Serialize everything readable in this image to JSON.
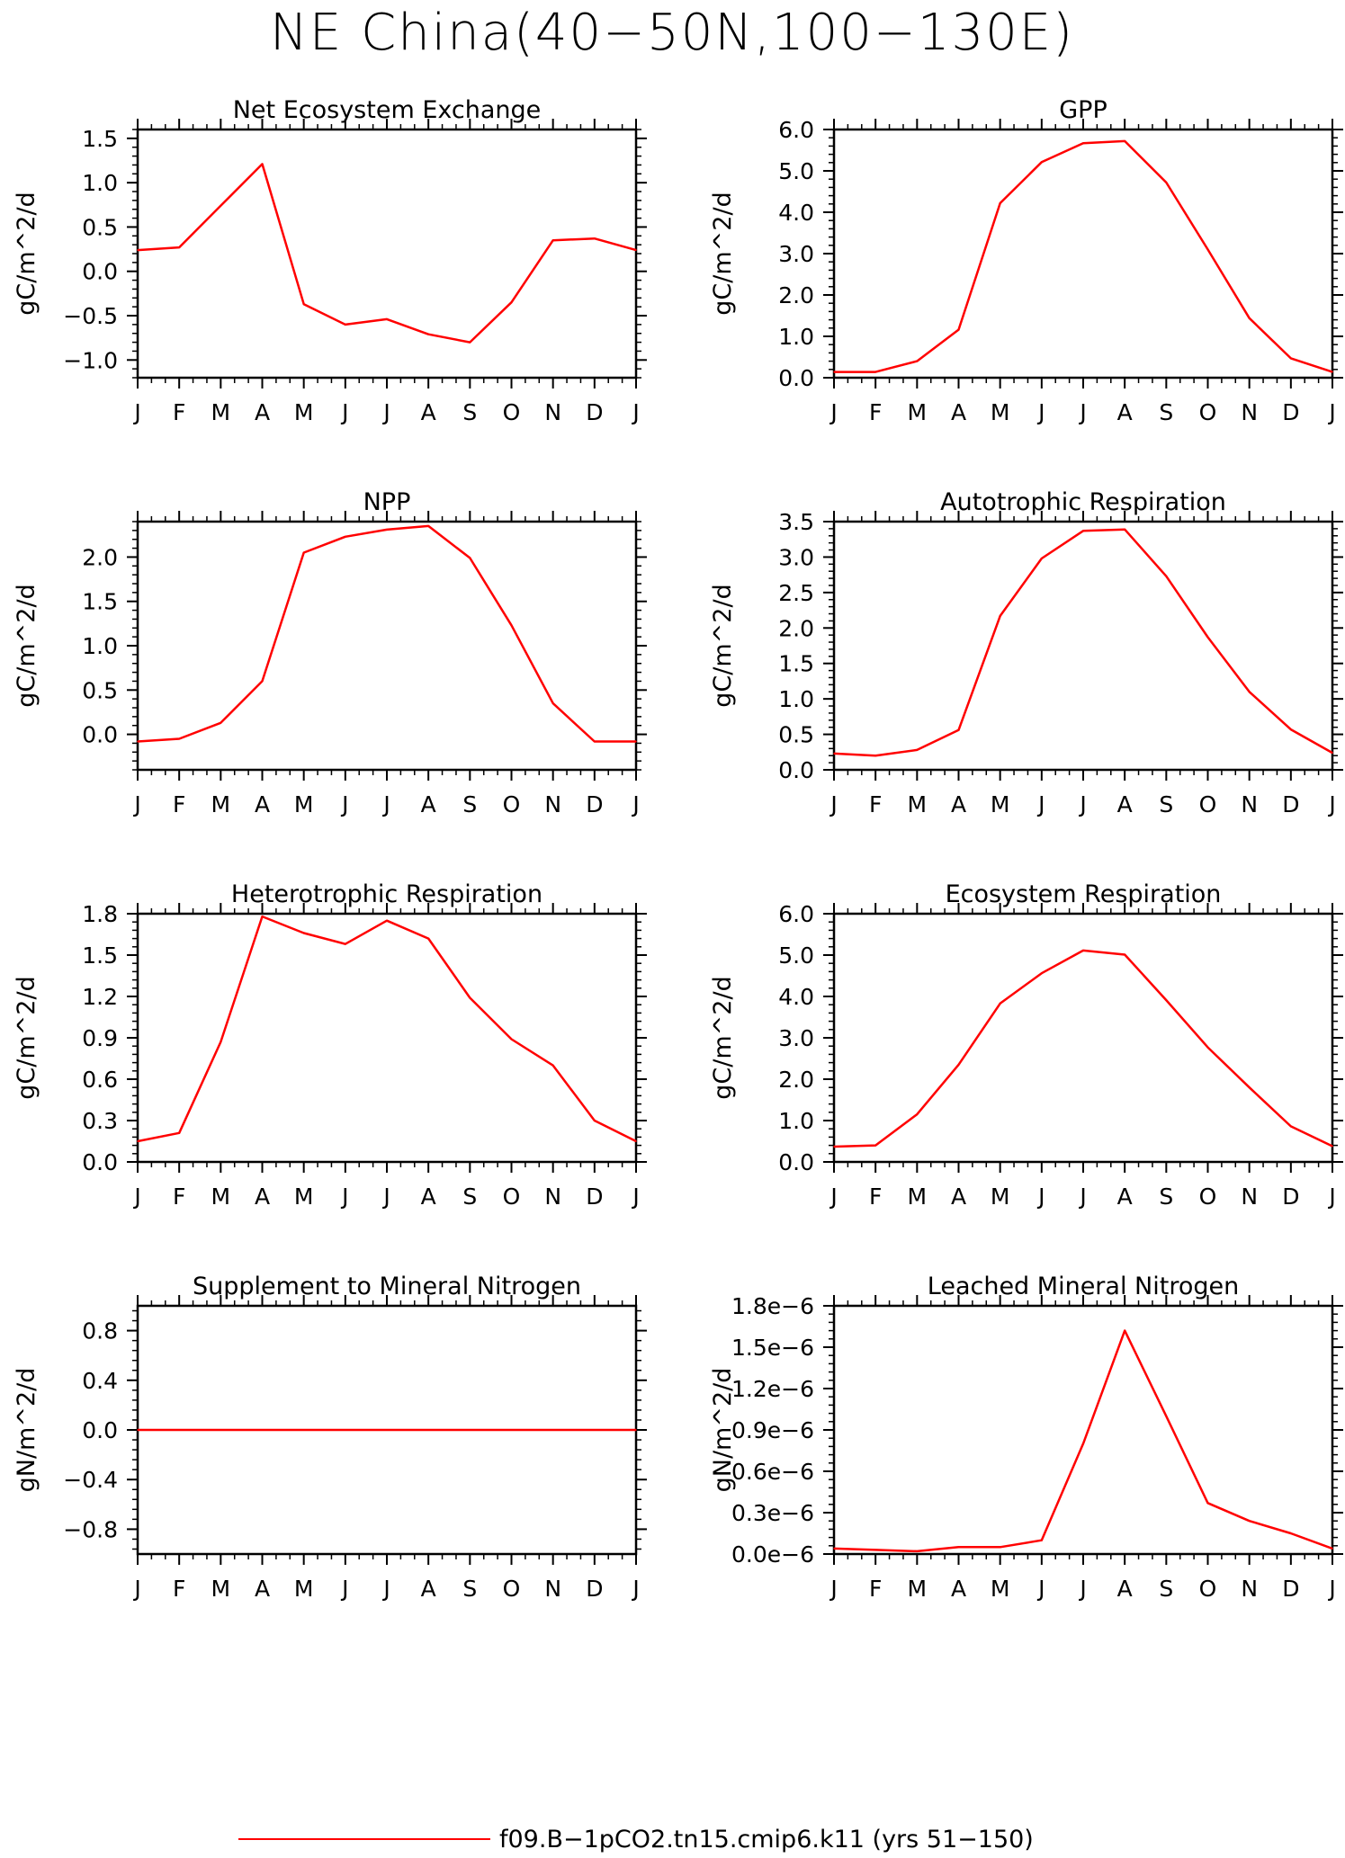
{
  "title": "NE China(40−50N,100−130E)",
  "legend": {
    "label": "f09.B−1pCO2.tn15.cmip6.k11 (yrs 51−150)",
    "color": "#ff0000"
  },
  "line_color": "#ff0000",
  "chart_data": [
    {
      "type": "line",
      "title": "Net Ecosystem Exchange",
      "ylabel": "gC/m^2/d",
      "categories": [
        "J",
        "F",
        "M",
        "A",
        "M",
        "J",
        "J",
        "A",
        "S",
        "O",
        "N",
        "D",
        "J"
      ],
      "ylim": [
        -1.2,
        1.6
      ],
      "yticks": [
        -1.0,
        -0.5,
        0.0,
        0.5,
        1.0,
        1.5
      ],
      "ytick_labels": [
        "−1.0",
        "−0.5",
        "0.0",
        "0.5",
        "1.0",
        "1.5"
      ],
      "series": [
        {
          "values": [
            0.24,
            0.27,
            0.74,
            1.21,
            -0.37,
            -0.6,
            -0.54,
            -0.71,
            -0.8,
            -0.35,
            0.35,
            0.37,
            0.24
          ]
        }
      ]
    },
    {
      "type": "line",
      "title": "GPP",
      "ylabel": "gC/m^2/d",
      "categories": [
        "J",
        "F",
        "M",
        "A",
        "M",
        "J",
        "J",
        "A",
        "S",
        "O",
        "N",
        "D",
        "J"
      ],
      "ylim": [
        0.0,
        6.0
      ],
      "yticks": [
        0.0,
        1.0,
        2.0,
        3.0,
        4.0,
        5.0,
        6.0
      ],
      "ytick_labels": [
        "0.0",
        "1.0",
        "2.0",
        "3.0",
        "4.0",
        "5.0",
        "6.0"
      ],
      "series": [
        {
          "values": [
            0.14,
            0.14,
            0.4,
            1.16,
            4.22,
            5.21,
            5.67,
            5.72,
            4.72,
            3.1,
            1.44,
            0.47,
            0.14
          ]
        }
      ]
    },
    {
      "type": "line",
      "title": "NPP",
      "ylabel": "gC/m^2/d",
      "categories": [
        "J",
        "F",
        "M",
        "A",
        "M",
        "J",
        "J",
        "A",
        "S",
        "O",
        "N",
        "D",
        "J"
      ],
      "ylim": [
        -0.4,
        2.4
      ],
      "yticks": [
        0.0,
        0.5,
        1.0,
        1.5,
        2.0
      ],
      "ytick_labels": [
        "0.0",
        "0.5",
        "1.0",
        "1.5",
        "2.0"
      ],
      "series": [
        {
          "values": [
            -0.08,
            -0.05,
            0.13,
            0.6,
            2.05,
            2.23,
            2.31,
            2.35,
            1.99,
            1.23,
            0.35,
            -0.08,
            -0.08
          ]
        }
      ]
    },
    {
      "type": "line",
      "title": "Autotrophic Respiration",
      "ylabel": "gC/m^2/d",
      "categories": [
        "J",
        "F",
        "M",
        "A",
        "M",
        "J",
        "J",
        "A",
        "S",
        "O",
        "N",
        "D",
        "J"
      ],
      "ylim": [
        0.0,
        3.5
      ],
      "yticks": [
        0.0,
        0.5,
        1.0,
        1.5,
        2.0,
        2.5,
        3.0,
        3.5
      ],
      "ytick_labels": [
        "0.0",
        "0.5",
        "1.0",
        "1.5",
        "2.0",
        "2.5",
        "3.0",
        "3.5"
      ],
      "series": [
        {
          "values": [
            0.23,
            0.2,
            0.28,
            0.56,
            2.17,
            2.98,
            3.37,
            3.39,
            2.73,
            1.87,
            1.1,
            0.57,
            0.24
          ]
        }
      ]
    },
    {
      "type": "line",
      "title": "Heterotrophic Respiration",
      "ylabel": "gC/m^2/d",
      "categories": [
        "J",
        "F",
        "M",
        "A",
        "M",
        "J",
        "J",
        "A",
        "S",
        "O",
        "N",
        "D",
        "J"
      ],
      "ylim": [
        0.0,
        1.8
      ],
      "yticks": [
        0.0,
        0.3,
        0.6,
        0.9,
        1.2,
        1.5,
        1.8
      ],
      "ytick_labels": [
        "0.0",
        "0.3",
        "0.6",
        "0.9",
        "1.2",
        "1.5",
        "1.8"
      ],
      "series": [
        {
          "values": [
            0.15,
            0.21,
            0.87,
            1.78,
            1.66,
            1.58,
            1.75,
            1.62,
            1.19,
            0.89,
            0.7,
            0.3,
            0.15
          ]
        }
      ]
    },
    {
      "type": "line",
      "title": "Ecosystem Respiration",
      "ylabel": "gC/m^2/d",
      "categories": [
        "J",
        "F",
        "M",
        "A",
        "M",
        "J",
        "J",
        "A",
        "S",
        "O",
        "N",
        "D",
        "J"
      ],
      "ylim": [
        0.0,
        6.0
      ],
      "yticks": [
        0.0,
        1.0,
        2.0,
        3.0,
        4.0,
        5.0,
        6.0
      ],
      "ytick_labels": [
        "0.0",
        "1.0",
        "2.0",
        "3.0",
        "4.0",
        "5.0",
        "6.0"
      ],
      "series": [
        {
          "values": [
            0.37,
            0.4,
            1.15,
            2.35,
            3.83,
            4.56,
            5.11,
            5.01,
            3.91,
            2.77,
            1.8,
            0.86,
            0.38
          ]
        }
      ]
    },
    {
      "type": "line",
      "title": "Supplement to Mineral Nitrogen",
      "ylabel": "gN/m^2/d",
      "categories": [
        "J",
        "F",
        "M",
        "A",
        "M",
        "J",
        "J",
        "A",
        "S",
        "O",
        "N",
        "D",
        "J"
      ],
      "ylim": [
        -1.0,
        1.0
      ],
      "yticks": [
        -0.8,
        -0.4,
        0.0,
        0.4,
        0.8
      ],
      "ytick_labels": [
        "−0.8",
        "−0.4",
        "0.0",
        "0.4",
        "0.8"
      ],
      "series": [
        {
          "values": [
            0,
            0,
            0,
            0,
            0,
            0,
            0,
            0,
            0,
            0,
            0,
            0,
            0
          ]
        }
      ]
    },
    {
      "type": "line",
      "title": "Leached Mineral Nitrogen",
      "ylabel": "gN/m^2/d",
      "categories": [
        "J",
        "F",
        "M",
        "A",
        "M",
        "J",
        "J",
        "A",
        "S",
        "O",
        "N",
        "D",
        "J"
      ],
      "ylim": [
        0.0,
        1.8e-06
      ],
      "yticks": [
        0.0,
        3e-07,
        6e-07,
        9e-07,
        1.2e-06,
        1.5e-06,
        1.8e-06
      ],
      "ytick_labels": [
        "0.0e−6",
        "0.3e−6",
        "0.6e−6",
        "0.9e−6",
        "1.2e−6",
        "1.5e−6",
        "1.8e−6"
      ],
      "series": [
        {
          "values": [
            4e-08,
            3e-08,
            2e-08,
            5e-08,
            5e-08,
            1e-07,
            8e-07,
            1.62e-06,
            1e-06,
            3.7e-07,
            2.4e-07,
            1.5e-07,
            4e-08
          ]
        }
      ]
    }
  ]
}
